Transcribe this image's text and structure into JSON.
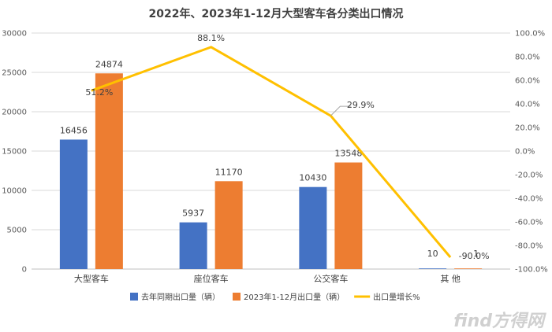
{
  "chart_data": {
    "type": "bar",
    "title": "2022年、2023年1-12月大型客车各分类出口情况",
    "categories": [
      "大型客车",
      "座位客车",
      "公交客车",
      "其  他"
    ],
    "series": [
      {
        "name": "去年同期出口量（辆）",
        "kind": "bar",
        "axis": "left",
        "color": "#4472C4",
        "values": [
          16456,
          5937,
          10430,
          10
        ]
      },
      {
        "name": "2023年1-12月出口量（辆）",
        "kind": "bar",
        "axis": "left",
        "color": "#ED7D31",
        "values": [
          24874,
          11170,
          13548,
          1
        ]
      },
      {
        "name": "出口量增长%",
        "kind": "line",
        "axis": "right",
        "color": "#FFC000",
        "values": [
          51.2,
          88.1,
          29.9,
          -90.0
        ]
      }
    ],
    "bar_labels": [
      [
        "16456",
        "5937",
        "10430",
        "10"
      ],
      [
        "24874",
        "11170",
        "13548",
        "1"
      ]
    ],
    "line_labels": [
      "51.2%",
      "88.1%",
      "29.9%",
      "-90.0%"
    ],
    "ylim_left": [
      0,
      30000
    ],
    "yticks_left": [
      "0",
      "5000",
      "10000",
      "15000",
      "20000",
      "25000",
      "30000"
    ],
    "ylim_right": [
      -100,
      100
    ],
    "yticks_right": [
      "-100.0%",
      "-80.0%",
      "-60.0%",
      "-40.0%",
      "-20.0%",
      "0.0%",
      "20.0%",
      "40.0%",
      "60.0%",
      "80.0%",
      "100.0%"
    ],
    "grid": true,
    "legend": "bottom"
  },
  "watermark": "find方得网"
}
